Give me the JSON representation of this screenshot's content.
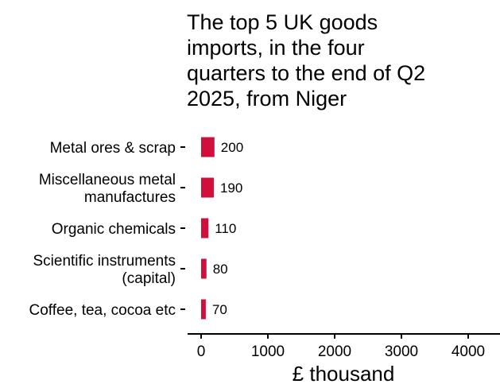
{
  "chart_data": {
    "type": "bar",
    "orientation": "horizontal",
    "title_lines": [
      "The top 5 UK goods",
      "imports, in the four",
      "quarters to the end of Q2",
      "2025, from Niger"
    ],
    "categories": [
      [
        "Metal ores & scrap"
      ],
      [
        "Miscellaneous metal",
        "manufactures"
      ],
      [
        "Organic chemicals"
      ],
      [
        "Scientific instruments",
        "(capital)"
      ],
      [
        "Coffee, tea, cocoa etc"
      ]
    ],
    "values": [
      200,
      190,
      110,
      80,
      70
    ],
    "data_labels": [
      "200",
      "190",
      "110",
      "80",
      "70"
    ],
    "xlabel": "£ thousand",
    "ylabel": "",
    "xlim": [
      -200,
      4500
    ],
    "xticks": [
      0,
      1000,
      2000,
      3000,
      4000
    ],
    "xtick_labels": [
      "0",
      "1000",
      "2000",
      "3000",
      "4000"
    ],
    "bar_color": "#d0103a",
    "grid": false,
    "legend": "none"
  }
}
